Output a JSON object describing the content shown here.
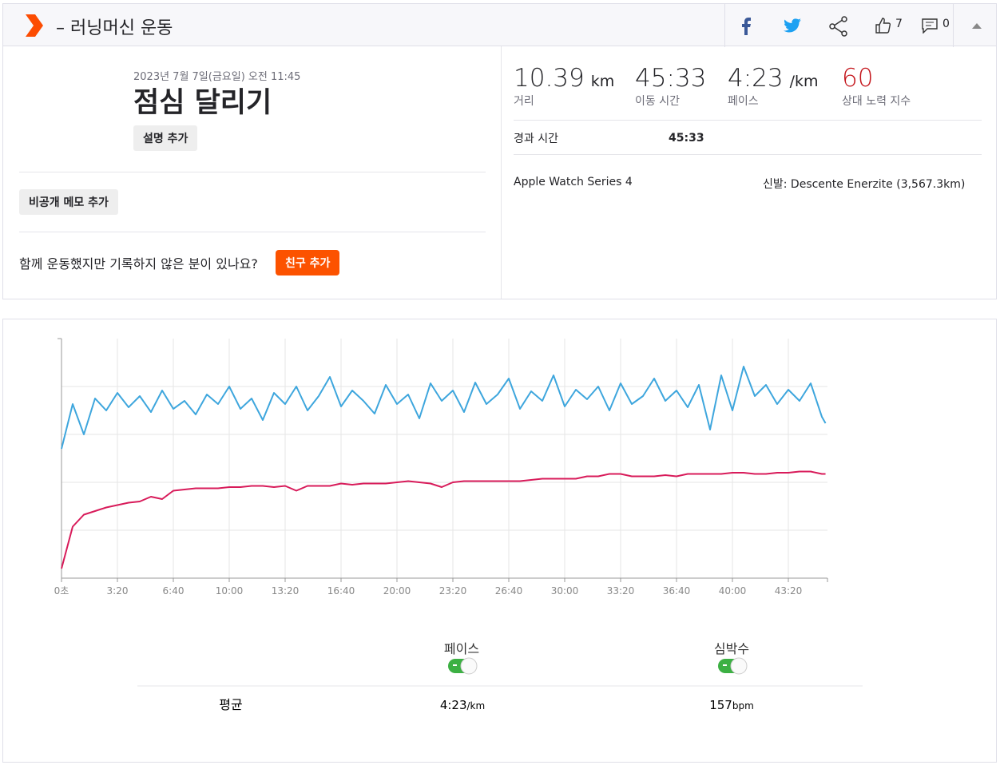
{
  "header": {
    "title": "– 러닝머신 운동",
    "kudos": "7",
    "comments": "0"
  },
  "activity": {
    "date": "2023년 7월 7일(금요일) 오전 11:45",
    "name": "점심 달리기",
    "add_description": "설명 추가",
    "add_private_note": "비공개 메모 추가",
    "friends_prompt": "함께 운동했지만 기록하지 않은 분이 있나요?",
    "add_friend": "친구 추가"
  },
  "stats": [
    {
      "value": "10.39",
      "unit": "km",
      "label": "거리"
    },
    {
      "value": "45:33",
      "label": "이동 시간"
    },
    {
      "value": "4:23",
      "unit": "/km",
      "label": "페이스"
    },
    {
      "value": "60",
      "label": "상대 노력 지수"
    }
  ],
  "elapsed": {
    "label": "경과 시간",
    "value": "45:33"
  },
  "device": "Apple Watch Series 4",
  "shoes": "신발: Descente Enerzite (3,567.3km)",
  "chart_data": {
    "type": "line",
    "grid": true,
    "x": [
      0,
      40,
      80,
      120,
      160,
      200,
      240,
      280,
      320,
      360,
      400,
      440,
      480,
      520,
      560,
      600,
      640,
      680,
      720,
      760,
      800,
      840,
      880,
      920,
      960,
      1000,
      1040,
      1080,
      1120,
      1160,
      1200,
      1240,
      1280,
      1320,
      1360,
      1400,
      1440,
      1480,
      1520,
      1560,
      1600,
      1640,
      1680,
      1720,
      1760,
      1800,
      1840,
      1880,
      1920,
      1960,
      2000,
      2040,
      2080,
      2120,
      2160,
      2200,
      2240,
      2280,
      2320,
      2360,
      2400,
      2440,
      2480,
      2520,
      2560,
      2600,
      2640,
      2680,
      2720,
      2733
    ],
    "xlim": [
      0,
      2740
    ],
    "xticks": [
      {
        "value": 0,
        "label": "0초"
      },
      {
        "value": 200,
        "label": "3:20"
      },
      {
        "value": 400,
        "label": "6:40"
      },
      {
        "value": 600,
        "label": "10:00"
      },
      {
        "value": 800,
        "label": "13:20"
      },
      {
        "value": 1000,
        "label": "16:40"
      },
      {
        "value": 1200,
        "label": "20:00"
      },
      {
        "value": 1400,
        "label": "23:20"
      },
      {
        "value": 1600,
        "label": "26:40"
      },
      {
        "value": 1800,
        "label": "30:00"
      },
      {
        "value": 2000,
        "label": "33:20"
      },
      {
        "value": 2200,
        "label": "36:40"
      },
      {
        "value": 2400,
        "label": "40:00"
      },
      {
        "value": 2600,
        "label": "43:20"
      }
    ],
    "ylim": [
      80,
      280
    ],
    "yticks": [
      120,
      160,
      200,
      240
    ],
    "y2lim": [
      480,
      180
    ],
    "series": [
      {
        "name": "페이스",
        "color": "#3ea6dd",
        "axis": "y2",
        "values": [
          318,
          262,
          300,
          255,
          270,
          248,
          266,
          252,
          272,
          245,
          268,
          258,
          275,
          250,
          262,
          240,
          268,
          255,
          282,
          248,
          262,
          240,
          270,
          252,
          228,
          265,
          245,
          258,
          274,
          238,
          262,
          250,
          280,
          236,
          258,
          245,
          272,
          235,
          262,
          250,
          230,
          268,
          246,
          258,
          226,
          265,
          244,
          256,
          240,
          270,
          236,
          262,
          252,
          230,
          258,
          245,
          266,
          238,
          294,
          226,
          270,
          215,
          252,
          238,
          262,
          244,
          258,
          236,
          278,
          286
        ]
      },
      {
        "name": "심박수",
        "color": "#d81b5a",
        "values": [
          88,
          123,
          133,
          136,
          139,
          141,
          143,
          144,
          148,
          146,
          153,
          154,
          155,
          155,
          155,
          156,
          156,
          157,
          157,
          156,
          157,
          153,
          157,
          157,
          157,
          159,
          158,
          159,
          159,
          159,
          160,
          161,
          160,
          159,
          156,
          160,
          161,
          161,
          161,
          161,
          161,
          161,
          162,
          163,
          163,
          163,
          163,
          165,
          165,
          167,
          167,
          165,
          165,
          165,
          166,
          165,
          167,
          167,
          167,
          167,
          168,
          168,
          167,
          167,
          168,
          168,
          169,
          169,
          167,
          167
        ]
      }
    ]
  },
  "summary": {
    "label": "평균",
    "pace": "4:23",
    "pace_unit": "/km",
    "hr": "157",
    "hr_unit": "bpm"
  }
}
